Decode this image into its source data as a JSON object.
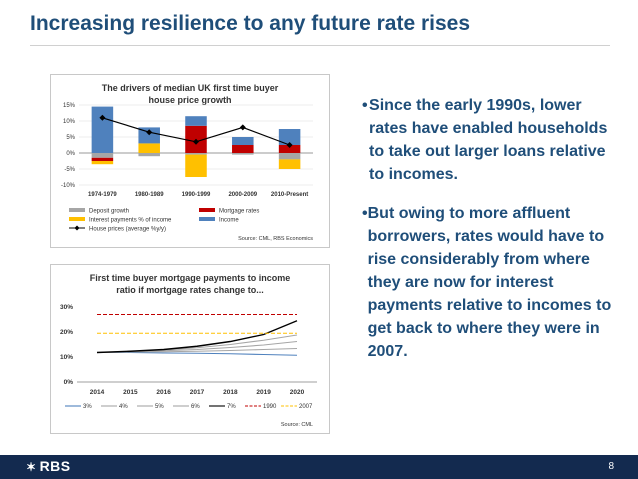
{
  "slide": {
    "title": "Increasing resilience to any future rate rises",
    "page_number": "8",
    "logo_text": "RBS",
    "logo_mark": "✶"
  },
  "bullets": [
    "Since the early 1990s, lower rates have enabled households to take out larger loans relative to incomes.",
    "But owing to more affluent borrowers, rates would have to rise considerably from where they are now for interest payments relative to incomes to get back to where they were in 2007."
  ],
  "chart_data": [
    {
      "type": "bar",
      "stacked": true,
      "title": "The drivers of median UK first time buyer house price growth",
      "categories": [
        "1974-1979",
        "1980-1989",
        "1990-1999",
        "2000-2009",
        "2010-Present"
      ],
      "ylim": [
        -10,
        15
      ],
      "yticks": [
        -10,
        -5,
        0,
        5,
        10,
        15
      ],
      "ytick_labels": [
        "-10%",
        "-5%",
        "0%",
        "5%",
        "10%",
        "15%"
      ],
      "series": [
        {
          "name": "Deposit growth",
          "color": "#a6a6a6",
          "values": [
            -1.5,
            -1.0,
            -0.5,
            -0.5,
            -2.0
          ]
        },
        {
          "name": "Mortgage rates",
          "color": "#c00000",
          "values": [
            -1.0,
            0.0,
            8.5,
            2.5,
            2.5
          ]
        },
        {
          "name": "Interest payments % of income",
          "color": "#ffc000",
          "values": [
            -1.0,
            3.0,
            -7.0,
            0.0,
            -3.0
          ]
        },
        {
          "name": "Income",
          "color": "#4f81bd",
          "values": [
            14.5,
            5.0,
            3.0,
            2.5,
            5.0
          ]
        }
      ],
      "line": {
        "name": "House prices (average %y/y)",
        "color": "#000000",
        "values": [
          11.0,
          6.5,
          3.5,
          8.0,
          2.5
        ]
      },
      "source": "Source: CML, RBS Economics"
    },
    {
      "type": "line",
      "title": "First time buyer mortgage payments to income ratio if mortgage rates change to...",
      "x": [
        "2014",
        "2015",
        "2016",
        "2017",
        "2018",
        "2019",
        "2020"
      ],
      "ylim": [
        0,
        30
      ],
      "yticks": [
        0,
        10,
        20,
        30
      ],
      "ytick_labels": [
        "0%",
        "10%",
        "20%",
        "30%"
      ],
      "series": [
        {
          "name": "3%",
          "color": "#4f81bd",
          "dash": "solid",
          "values": [
            11.8,
            11.8,
            11.6,
            11.5,
            11.3,
            11.0,
            10.7
          ]
        },
        {
          "name": "4%",
          "color": "#a6a6a6",
          "dash": "solid",
          "values": [
            11.8,
            12.0,
            12.1,
            12.3,
            12.6,
            13.0,
            13.4
          ]
        },
        {
          "name": "5%",
          "color": "#a6a6a6",
          "dash": "solid",
          "values": [
            11.8,
            12.1,
            12.5,
            13.0,
            13.8,
            14.8,
            16.2
          ]
        },
        {
          "name": "6%",
          "color": "#a6a6a6",
          "dash": "solid",
          "values": [
            11.8,
            12.2,
            12.8,
            13.7,
            15.0,
            16.7,
            18.8
          ]
        },
        {
          "name": "7%",
          "color": "#000000",
          "dash": "solid",
          "values": [
            11.8,
            12.3,
            13.0,
            14.3,
            16.2,
            19.0,
            24.5
          ]
        },
        {
          "name": "1990",
          "color": "#c00000",
          "dash": "dashed",
          "values": [
            27.0,
            27.0,
            27.0,
            27.0,
            27.0,
            27.0,
            27.0
          ]
        },
        {
          "name": "2007",
          "color": "#ffc000",
          "dash": "dashed",
          "values": [
            19.5,
            19.5,
            19.5,
            19.5,
            19.5,
            19.5,
            19.5
          ]
        }
      ],
      "source": "Source: CML"
    }
  ]
}
